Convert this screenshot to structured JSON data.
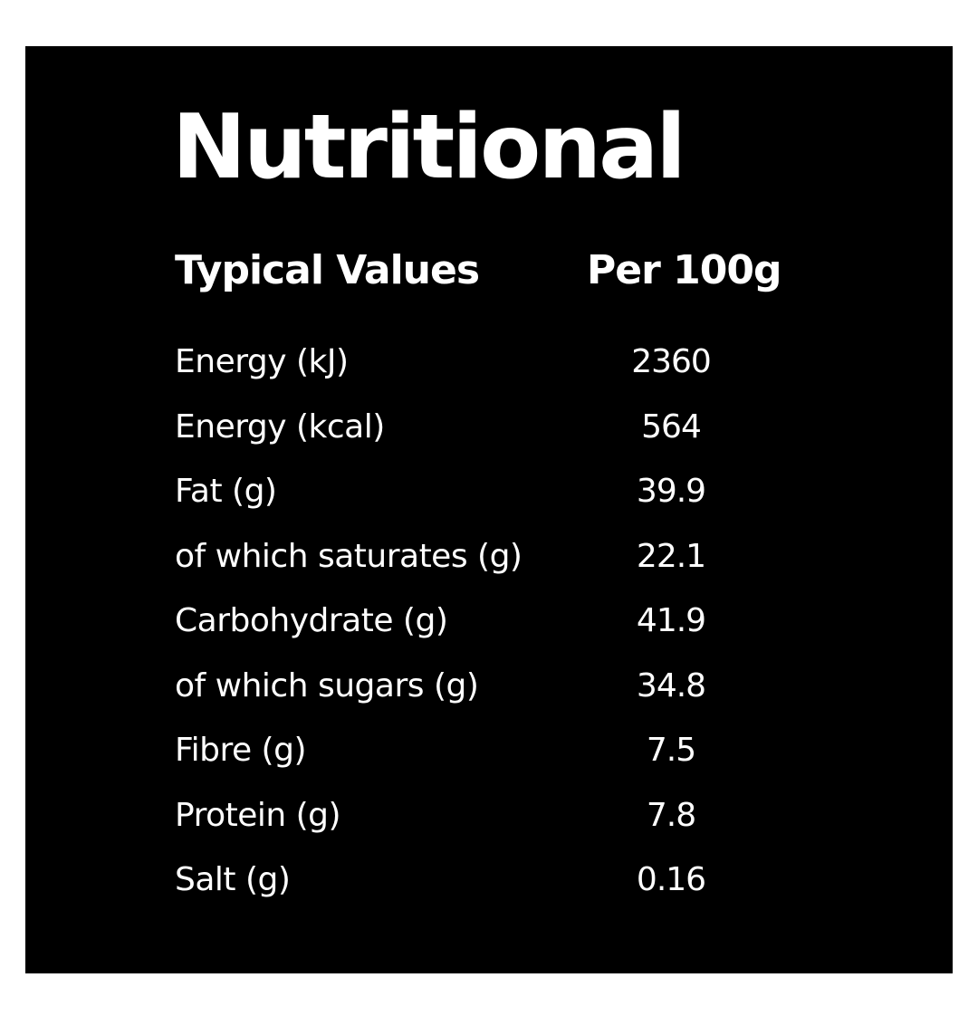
{
  "header": {
    "title": "Nutritional"
  },
  "table": {
    "columns": [
      "Typical Values",
      "Per 100g"
    ],
    "rows": [
      [
        "Energy (kJ)",
        2360
      ],
      [
        "Energy (kcal)",
        564
      ],
      [
        "Fat (g)",
        39.9
      ],
      [
        "of which saturates (g)",
        22.1
      ],
      [
        "Carbohydrate (g)",
        41.9
      ],
      [
        "of which sugars (g)",
        34.8
      ],
      [
        "Fibre (g)",
        7.5
      ],
      [
        "Protein (g)",
        7.8
      ],
      [
        "Salt (g)",
        0.16
      ]
    ]
  }
}
